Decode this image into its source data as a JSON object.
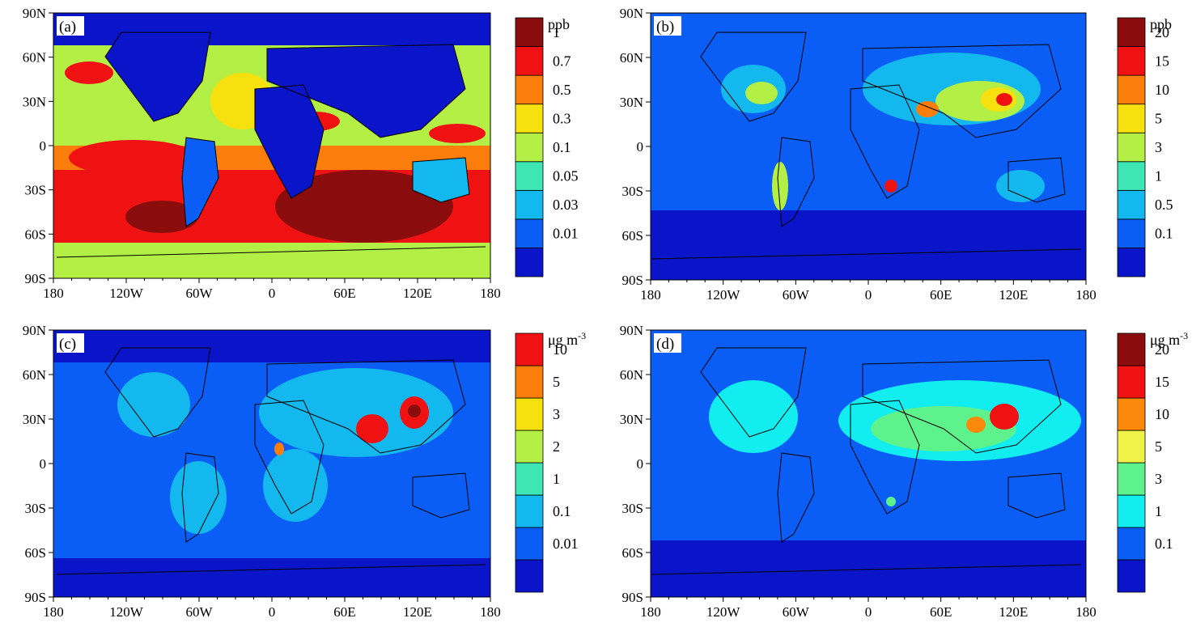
{
  "map": {
    "lon_ticks": [
      "180",
      "120W",
      "60W",
      "0",
      "60E",
      "120E",
      "180"
    ],
    "lat_ticks": [
      "90N",
      "60N",
      "30N",
      "0",
      "30S",
      "60S",
      "90S"
    ]
  },
  "palette": [
    "#0a14c8",
    "#0a5ef5",
    "#12b8ee",
    "#3de6b4",
    "#b4ef46",
    "#f6e10e",
    "#fb7d0c",
    "#f01212",
    "#8a0c0c"
  ],
  "palette_d": [
    "#0a14c8",
    "#0a5ef5",
    "#12eef0",
    "#5ef28c",
    "#f0f24a",
    "#fb8a0c",
    "#f01212",
    "#8a0c0c"
  ],
  "panels": [
    {
      "id": "a",
      "label": "(a)",
      "unit": "ppb",
      "unit_sup": "",
      "levels": [
        "0.01",
        "0.03",
        "0.05",
        "0.1",
        "0.3",
        "0.5",
        "0.7",
        "1"
      ]
    },
    {
      "id": "b",
      "label": "(b)",
      "unit": "ppb",
      "unit_sup": "",
      "levels": [
        "0.1",
        "0.5",
        "1",
        "3",
        "5",
        "10",
        "15",
        "20"
      ]
    },
    {
      "id": "c",
      "label": "(c)",
      "unit": "μg m",
      "unit_sup": "-3",
      "levels": [
        "0.01",
        "0.1",
        "1",
        "2",
        "3",
        "5",
        "10"
      ]
    },
    {
      "id": "d",
      "label": "(d)",
      "unit": "μg m",
      "unit_sup": "-3",
      "levels": [
        "0.1",
        "1",
        "3",
        "5",
        "10",
        "15",
        "20"
      ]
    }
  ]
}
